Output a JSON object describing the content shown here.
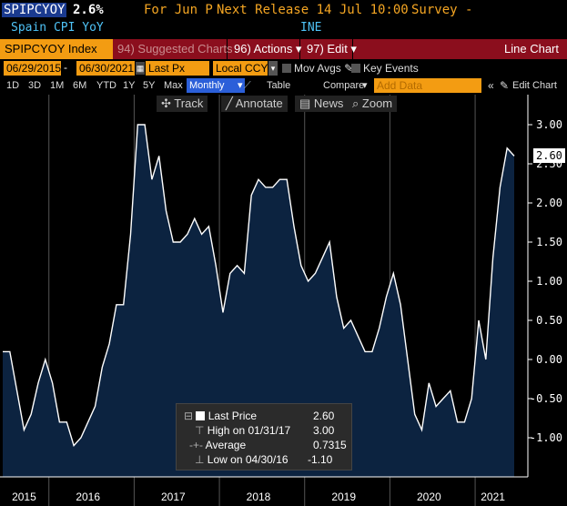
{
  "header": {
    "ticker": "SPIPCYOY",
    "last_value": "2.6%",
    "for_period": "For Jun P",
    "next_release": "Next Release 14 Jul 10:00",
    "survey": "Survey -",
    "name": "Spain CPI YoY",
    "source": "INE"
  },
  "menu": {
    "index": "SPIPCYOY Index",
    "suggested": "94) Suggested Charts",
    "actions": "96) Actions ▾",
    "edit": "97) Edit ▾",
    "chart_type": "Line Chart"
  },
  "controls": {
    "start_date": "06/29/2015",
    "end_date": "06/30/2021",
    "field": "Last Px",
    "currency": "Local CCY",
    "mov_avgs": "Mov Avgs",
    "key_events": "Key Events"
  },
  "periods": [
    "1D",
    "3D",
    "1M",
    "6M",
    "YTD",
    "1Y",
    "5Y",
    "Max"
  ],
  "period_selected": "Monthly",
  "table_label": "Table",
  "compare_label": "Compare",
  "add_data_placeholder": "Add Data",
  "edit_chart_label": "Edit Chart",
  "tools": {
    "track": "Track",
    "annotate": "Annotate",
    "news": "News",
    "zoom": "Zoom"
  },
  "legend": {
    "last_price_label": "Last Price",
    "last_price_value": "2.60",
    "high_label": "High on 01/31/17",
    "high_value": "3.00",
    "average_label": "Average",
    "average_value": "0.7315",
    "low_label": "Low on 04/30/16",
    "low_value": "-1.10"
  },
  "last_label": "2.60",
  "colors": {
    "amber": "#f39c12",
    "area": "#0c2340",
    "line": "#ffffff",
    "menu_red": "#8b0e1d"
  },
  "chart_data": {
    "type": "area",
    "x": [
      "2015-06",
      "2015-07",
      "2015-08",
      "2015-09",
      "2015-10",
      "2015-11",
      "2015-12",
      "2016-01",
      "2016-02",
      "2016-03",
      "2016-04",
      "2016-05",
      "2016-06",
      "2016-07",
      "2016-08",
      "2016-09",
      "2016-10",
      "2016-11",
      "2016-12",
      "2017-01",
      "2017-02",
      "2017-03",
      "2017-04",
      "2017-05",
      "2017-06",
      "2017-07",
      "2017-08",
      "2017-09",
      "2017-10",
      "2017-11",
      "2017-12",
      "2018-01",
      "2018-02",
      "2018-03",
      "2018-04",
      "2018-05",
      "2018-06",
      "2018-07",
      "2018-08",
      "2018-09",
      "2018-10",
      "2018-11",
      "2018-12",
      "2019-01",
      "2019-02",
      "2019-03",
      "2019-04",
      "2019-05",
      "2019-06",
      "2019-07",
      "2019-08",
      "2019-09",
      "2019-10",
      "2019-11",
      "2019-12",
      "2020-01",
      "2020-02",
      "2020-03",
      "2020-04",
      "2020-05",
      "2020-06",
      "2020-07",
      "2020-08",
      "2020-09",
      "2020-10",
      "2020-11",
      "2020-12",
      "2021-01",
      "2021-02",
      "2021-03",
      "2021-04",
      "2021-05",
      "2021-06"
    ],
    "values": [
      0.1,
      0.1,
      -0.4,
      -0.9,
      -0.7,
      -0.3,
      0.0,
      -0.3,
      -0.8,
      -0.8,
      -1.1,
      -1.0,
      -0.8,
      -0.6,
      -0.1,
      0.2,
      0.7,
      0.7,
      1.6,
      3.0,
      3.0,
      2.3,
      2.6,
      1.9,
      1.5,
      1.5,
      1.6,
      1.8,
      1.6,
      1.7,
      1.2,
      0.6,
      1.1,
      1.2,
      1.1,
      2.1,
      2.3,
      2.2,
      2.2,
      2.3,
      2.3,
      1.7,
      1.2,
      1.0,
      1.1,
      1.3,
      1.5,
      0.8,
      0.4,
      0.5,
      0.3,
      0.1,
      0.1,
      0.4,
      0.8,
      1.1,
      0.7,
      0.0,
      -0.7,
      -0.9,
      -0.3,
      -0.6,
      -0.5,
      -0.4,
      -0.8,
      -0.8,
      -0.5,
      0.5,
      0.0,
      1.3,
      2.2,
      2.7,
      2.6
    ],
    "ylim": [
      -1.5,
      3.1
    ],
    "yticks": [
      "3.00",
      "2.50",
      "2.00",
      "1.50",
      "1.00",
      "0.50",
      "0.00",
      "-0.50",
      "-1.00"
    ],
    "ytick_values": [
      3.0,
      2.5,
      2.0,
      1.5,
      1.0,
      0.5,
      0.0,
      -0.5,
      -1.0
    ],
    "xtick_labels": [
      "2015",
      "2016",
      "2017",
      "2018",
      "2019",
      "2020",
      "2021"
    ],
    "xtick_positions": [
      "2015-09",
      "2016-06",
      "2017-06",
      "2018-06",
      "2019-06",
      "2020-06",
      "2021-03"
    ],
    "year_boundaries": [
      "2016-01",
      "2017-01",
      "2018-01",
      "2019-01",
      "2020-01",
      "2021-01"
    ]
  }
}
